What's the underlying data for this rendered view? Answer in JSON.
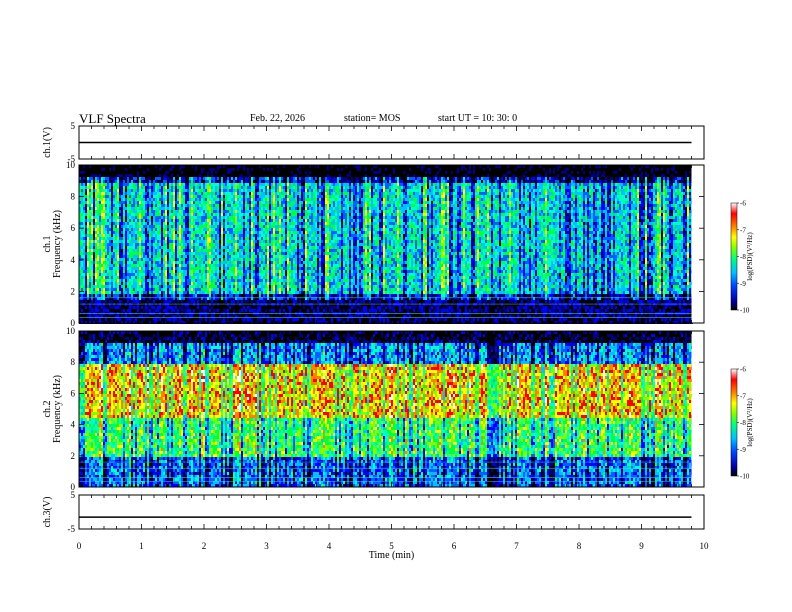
{
  "header": {
    "title": "VLF Spectra",
    "date": "Feb. 22, 2026",
    "station": "station= MOS",
    "start": "start  UT =   10: 30: 0"
  },
  "chart_data": [
    {
      "type": "line",
      "panel": "ch1-voltage",
      "ylabel": "ch.1(V)",
      "ylim": [
        -5,
        5
      ],
      "yticks": [
        "5",
        "-5"
      ],
      "trace": "flat line near 0 V with small periodic markers",
      "x": [
        0,
        9.8
      ],
      "y": [
        0,
        0
      ]
    },
    {
      "type": "heatmap",
      "panel": "ch1-spectrogram",
      "ylabel": "ch.1\nFrequency (kHz)",
      "ylim": [
        0,
        10
      ],
      "yticks": [
        "0",
        "2",
        "4",
        "6",
        "8",
        "10"
      ],
      "xlim": [
        0,
        9.8
      ],
      "colorbar": {
        "label": "log(PSD)(V²/Hz)",
        "range": [
          -10,
          -6
        ],
        "ticks": [
          "-6",
          "-7",
          "-8",
          "-9",
          "-10"
        ],
        "colors": [
          "#000000",
          "#0000a0",
          "#0040ff",
          "#00c0ff",
          "#00ff80",
          "#80ff00",
          "#ffff00",
          "#ff8000",
          "#ff0000",
          "#ffffff"
        ]
      },
      "description_levels": {
        "background": -9.2,
        "band_2_to_9_kHz": -8.3,
        "low_band_below_1.5_kHz": -9.6
      }
    },
    {
      "type": "heatmap",
      "panel": "ch2-spectrogram",
      "ylabel": "ch.2\nFrequency (kHz)",
      "ylim": [
        0,
        10
      ],
      "yticks": [
        "0",
        "2",
        "4",
        "6",
        "8",
        "10"
      ],
      "xlim": [
        0,
        9.8
      ],
      "colorbar": {
        "label": "log(PSD)(V²/Hz)",
        "range": [
          -10,
          -6
        ],
        "ticks": [
          "-6",
          "-7",
          "-8",
          "-9",
          "-10"
        ]
      },
      "description_levels": {
        "band_4.5_to_8_kHz": -7.0,
        "band_2_to_4.5_kHz": -7.8,
        "top_8_to_10_kHz": -8.6
      }
    },
    {
      "type": "line",
      "panel": "ch3-voltage",
      "ylabel": "ch.3(V)",
      "ylim": [
        -5,
        5
      ],
      "yticks": [
        "5",
        "-5"
      ],
      "trace": "flat line near -1.5 V",
      "x": [
        0,
        9.8
      ],
      "y": [
        -1.5,
        -1.5
      ]
    }
  ],
  "xaxis": {
    "label": "Time  (min)",
    "ticks": [
      "0",
      "1",
      "2",
      "3",
      "4",
      "5",
      "6",
      "7",
      "8",
      "9",
      "10"
    ],
    "xlim": [
      0,
      10
    ]
  }
}
